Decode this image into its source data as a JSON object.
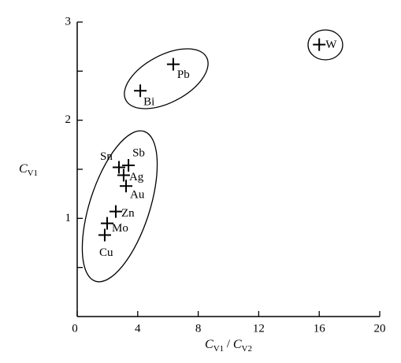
{
  "chart_data": {
    "type": "scatter",
    "xlabel": [
      "C",
      "V1",
      " / ",
      "C",
      "V2"
    ],
    "ylabel": [
      "C",
      "V1"
    ],
    "x": [
      16.0,
      6.35,
      4.17,
      3.39,
      2.76,
      3.07,
      3.23,
      2.55,
      1.98,
      1.82
    ],
    "values": [
      2.77,
      2.57,
      2.3,
      1.54,
      1.52,
      1.44,
      1.33,
      1.07,
      0.95,
      0.83
    ],
    "labels": [
      "W",
      "Pb",
      "Bi",
      "Sb",
      "Sn",
      "Ag",
      "Au",
      "Zn",
      "Mo",
      "Cu"
    ],
    "color": "#000000",
    "xlim": [
      0,
      20
    ],
    "xticks": [
      0,
      4,
      8,
      12,
      16,
      20
    ],
    "ylim": [
      0,
      3
    ],
    "yticks": [
      1,
      2,
      3
    ],
    "yminorticks": [
      0.5,
      1.5,
      2.5
    ]
  }
}
